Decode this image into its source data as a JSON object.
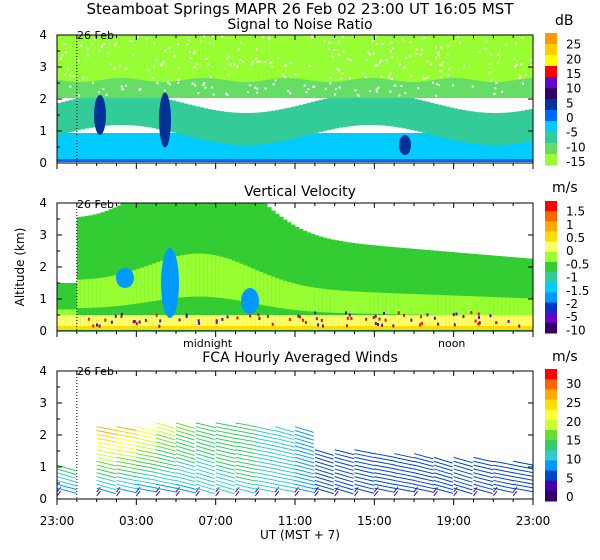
{
  "header": {
    "line1": "Steamboat Springs  MAPR 26 Feb 02  23:00 UT  16:05  MST"
  },
  "chart_data": [
    {
      "type": "heatmap",
      "title": "Signal to Noise Ratio",
      "ylabel": "",
      "ylim": [
        0,
        4
      ],
      "yticks": [
        "0",
        "1",
        "2",
        "3",
        "4"
      ],
      "date_marker": "26 Feb",
      "colorbar": {
        "unit": "dB",
        "labels": [
          "25",
          "20",
          "15",
          "10",
          "5",
          "0",
          "-5",
          "-10",
          "-15"
        ],
        "colors": [
          "#ff9900",
          "#ffcc00",
          "#ffff00",
          "#ff0000",
          "#6600cc",
          "#330066",
          "#003399",
          "#0066ff",
          "#00ccff",
          "#33cc99",
          "#66dd66",
          "#99ff33"
        ]
      }
    },
    {
      "type": "heatmap",
      "title": "Vertical Velocity",
      "ylabel": "Altitude (km)",
      "ylim": [
        0,
        4
      ],
      "yticks": [
        "0",
        "1",
        "2",
        "3",
        "4"
      ],
      "date_marker": "26 Feb",
      "xmarks": [
        "midnight",
        "noon"
      ],
      "colorbar": {
        "unit": "m/s",
        "labels": [
          "1.5",
          "1",
          "0.5",
          "0",
          "-0.5",
          "-1",
          "-1.5",
          "-2",
          "-5",
          "-10"
        ],
        "colors": [
          "#ff0000",
          "#ff6600",
          "#ffaa00",
          "#ffdd00",
          "#ffff66",
          "#99ff33",
          "#33cc33",
          "#33cc99",
          "#00ccff",
          "#0099ff",
          "#0033cc",
          "#6600cc",
          "#330066"
        ]
      }
    },
    {
      "type": "scatter",
      "title": "FCA Hourly Averaged Winds",
      "ylabel": "",
      "ylim": [
        0,
        4
      ],
      "yticks": [
        "0",
        "1",
        "2",
        "3",
        "4"
      ],
      "date_marker": "26 Feb",
      "colorbar": {
        "unit": "m/s",
        "labels": [
          "30",
          "25",
          "20",
          "15",
          "10",
          "5",
          "0"
        ],
        "colors": [
          "#ff0000",
          "#ff6600",
          "#ffaa00",
          "#ffdd00",
          "#ffff33",
          "#ccff33",
          "#66dd33",
          "#33cc66",
          "#33cccc",
          "#0099ff",
          "#0044cc",
          "#4400aa",
          "#330066"
        ]
      },
      "wind_speed_range": [
        0,
        30
      ]
    }
  ],
  "x_axis": {
    "tick_labels": [
      "23:00",
      "03:00",
      "07:00",
      "11:00",
      "15:00",
      "19:00",
      "23:00"
    ],
    "xlabel": "UT  (MST + 7)",
    "range_hours": [
      0,
      24
    ],
    "date_marker_hour": 1
  }
}
